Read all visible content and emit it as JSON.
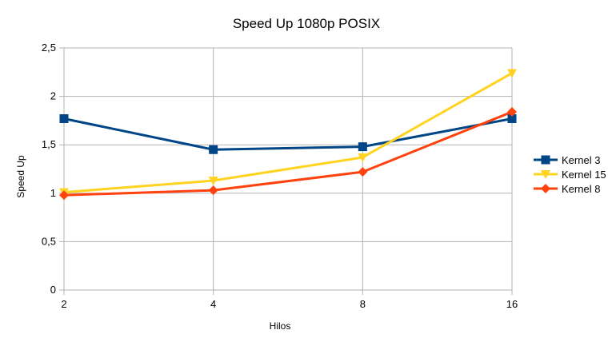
{
  "chart_data": {
    "type": "line",
    "title": "Speed Up 1080p POSIX",
    "xlabel": "Hilos",
    "ylabel": "Speed Up",
    "categories": [
      "2",
      "4",
      "8",
      "16"
    ],
    "ylim": [
      0,
      2.5
    ],
    "yticks": [
      "0",
      "0,5",
      "1",
      "1,5",
      "2",
      "2,5"
    ],
    "grid": true,
    "legend_position": "right",
    "series": [
      {
        "name": "Kernel 3",
        "values": [
          1.77,
          1.45,
          1.48,
          1.77
        ],
        "color": "#004586",
        "marker": "square"
      },
      {
        "name": "Kernel 15",
        "values": [
          1.01,
          1.13,
          1.37,
          2.24
        ],
        "color": "#ffd320",
        "marker": "triangle-down"
      },
      {
        "name": "Kernel 8",
        "values": [
          0.98,
          1.03,
          1.22,
          1.84
        ],
        "color": "#ff420e",
        "marker": "diamond"
      }
    ]
  }
}
